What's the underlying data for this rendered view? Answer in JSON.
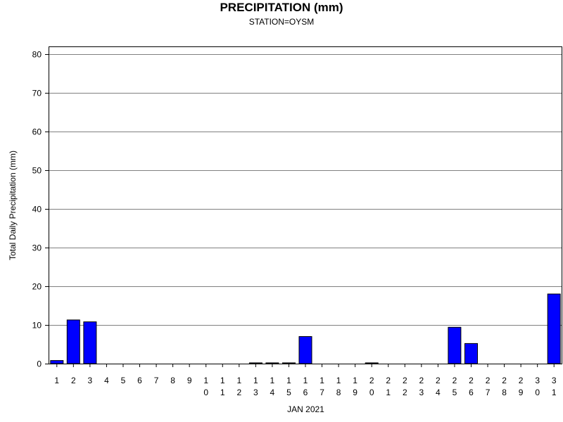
{
  "chart_data": {
    "type": "bar",
    "title": "PRECIPITATION (mm)",
    "subtitle": "STATION=OYSM",
    "xlabel": "JAN 2021",
    "ylabel": "Total Daily Precipitation (mm)",
    "ylim": [
      0,
      80
    ],
    "yticks": [
      0,
      10,
      20,
      30,
      40,
      50,
      60,
      70,
      80
    ],
    "grid": true,
    "bar_color": "#0000ff",
    "categories": [
      "1",
      "2",
      "3",
      "4",
      "5",
      "6",
      "7",
      "8",
      "9",
      "10",
      "11",
      "12",
      "13",
      "14",
      "15",
      "16",
      "17",
      "18",
      "19",
      "20",
      "21",
      "22",
      "23",
      "24",
      "25",
      "26",
      "27",
      "28",
      "29",
      "30",
      "31"
    ],
    "values": [
      0.8,
      11.3,
      10.8,
      0,
      0,
      0,
      0,
      0,
      0,
      0,
      0,
      0,
      0.2,
      0.2,
      0.2,
      7.0,
      0,
      0,
      0,
      0.2,
      0,
      0,
      0,
      0,
      9.4,
      5.2,
      0,
      0,
      0,
      0,
      18.0
    ]
  }
}
